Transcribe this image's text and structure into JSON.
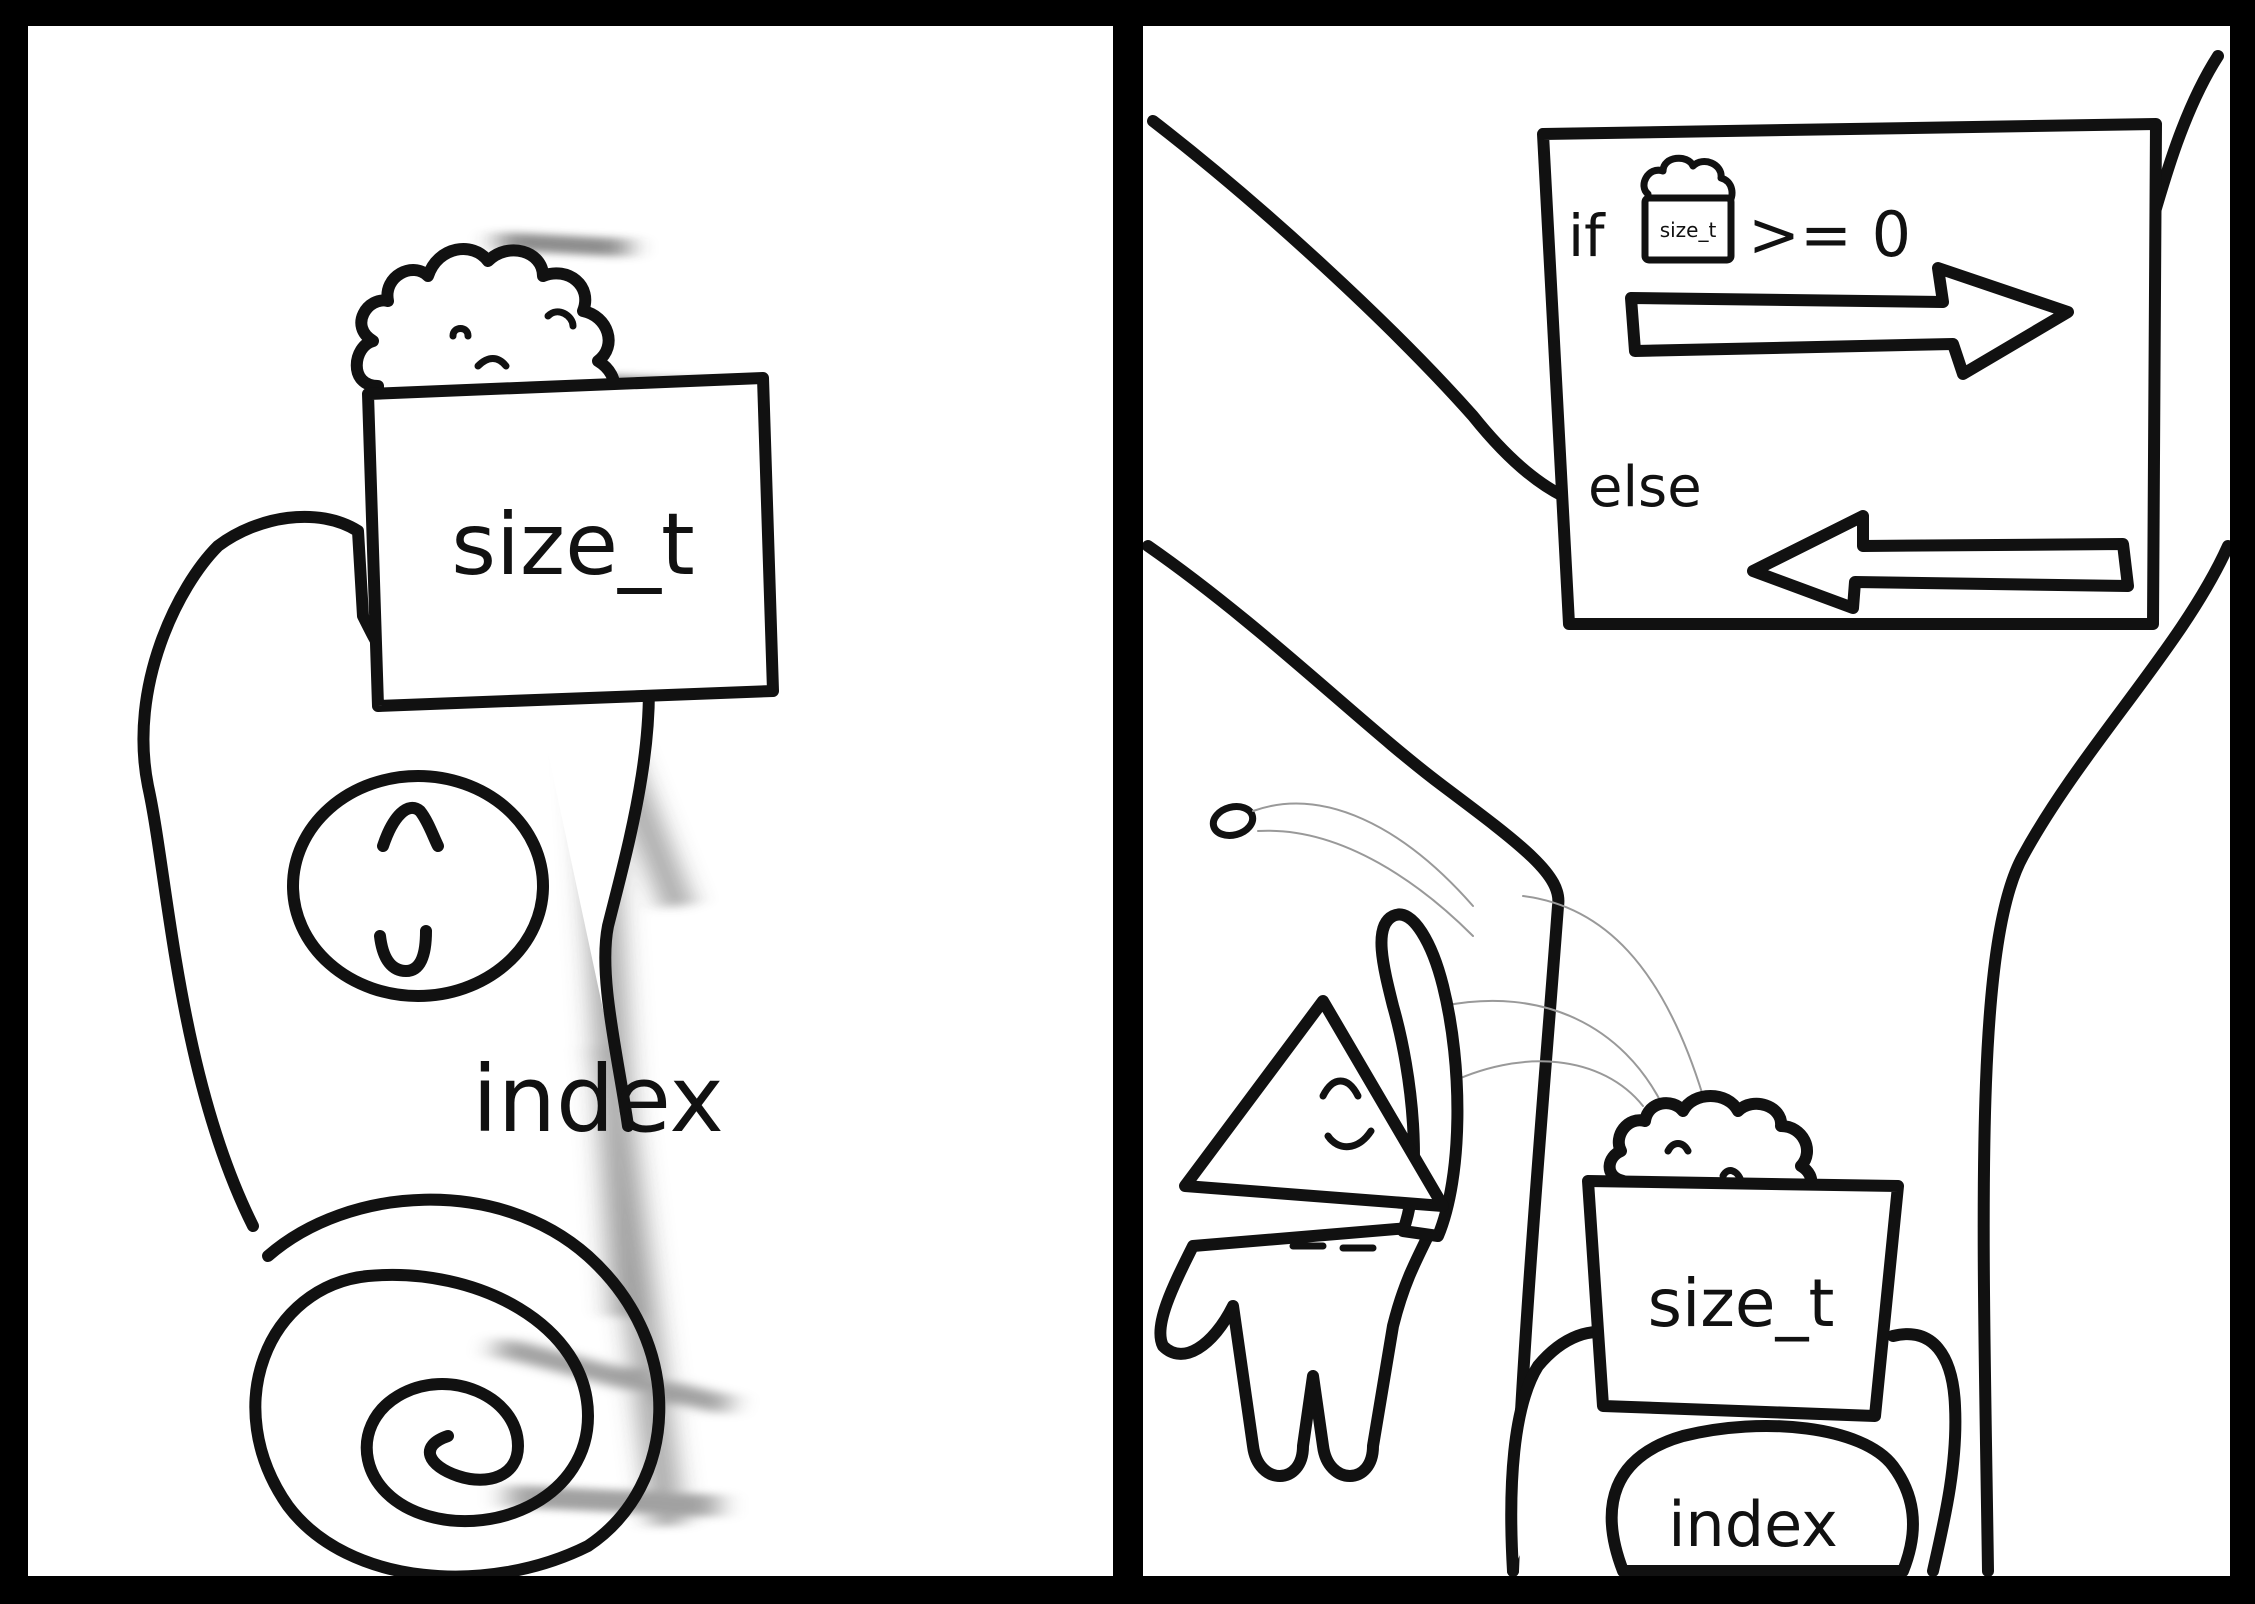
{
  "panels": [
    {
      "id": "left",
      "sign_text": "size_t",
      "body_text": "index"
    },
    {
      "id": "right",
      "condition": {
        "if_text": "if",
        "badge_text": "size_t",
        "comparison_text": ">= 0",
        "else_text": "else"
      },
      "sign_text": "size_t",
      "body_text": "index"
    }
  ]
}
